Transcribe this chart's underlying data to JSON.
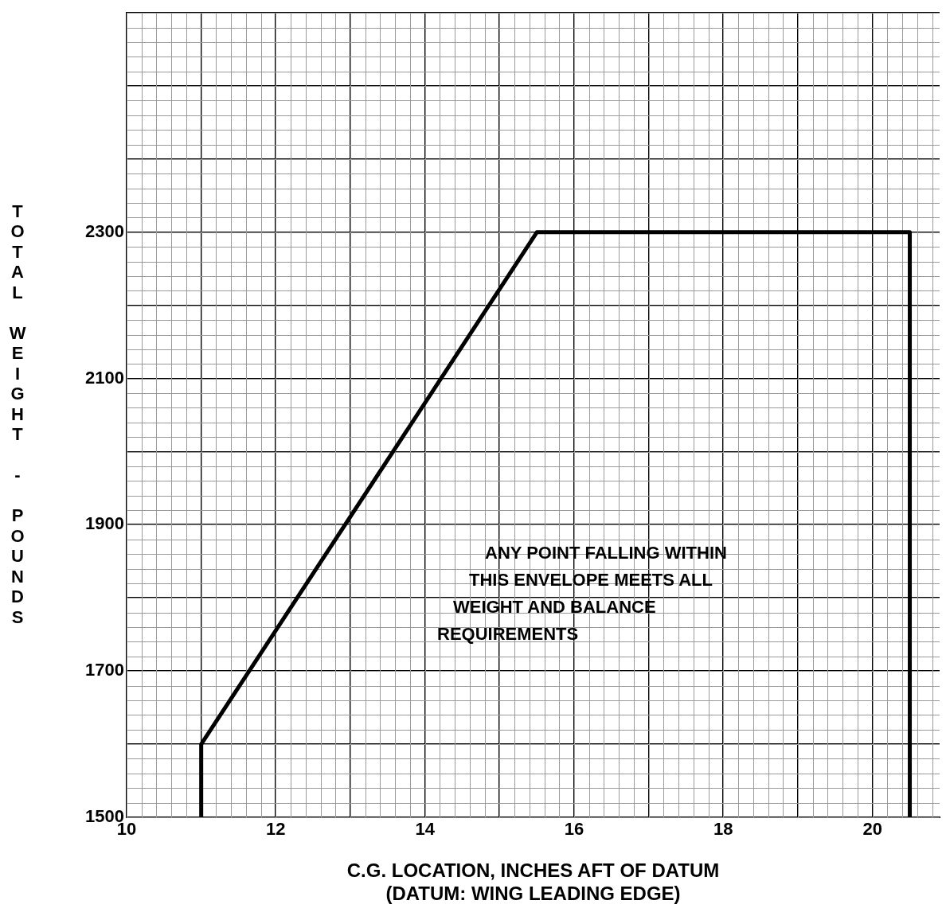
{
  "chart_data": {
    "type": "line",
    "xlabel": "C.G. LOCATION, INCHES AFT OF DATUM\n(DATUM: WING LEADING EDGE)",
    "ylabel": "TOTAL WEIGHT - POUNDS",
    "x": [
      11,
      11,
      15.5,
      20.5,
      20.5
    ],
    "series": [
      {
        "color": "#000000",
        "values": [
          1500,
          1600,
          2300,
          2300,
          1500
        ]
      }
    ],
    "xlim": [
      10,
      20.9
    ],
    "xticks": [
      10,
      {
        "value": 11,
        "label": null
      },
      12,
      {
        "value": 13,
        "label": null
      },
      14,
      {
        "value": 15,
        "label": null
      },
      16,
      {
        "value": 17,
        "label": null
      },
      18,
      {
        "value": 19,
        "label": null
      },
      20
    ],
    "ylim": [
      1500,
      2600
    ],
    "yticks": [
      1500,
      {
        "value": 1600,
        "label": null
      },
      1700,
      {
        "value": 1800,
        "label": null
      },
      1900,
      {
        "value": 2000,
        "label": null
      },
      2100,
      {
        "value": 2200,
        "label": null
      },
      2300,
      {
        "value": 2400,
        "label": null
      },
      {
        "value": 2500,
        "label": null
      },
      {
        "value": 2600,
        "label": null
      }
    ],
    "annotations": [
      "ANY POINT FALLING WITHIN\nTHIS ENVELOPE MEETS ALL\nWEIGHT AND BALANCE\nREQUIREMENTS"
    ],
    "grid": true,
    "legend": false,
    "marker": "none",
    "line_style": "solid"
  }
}
